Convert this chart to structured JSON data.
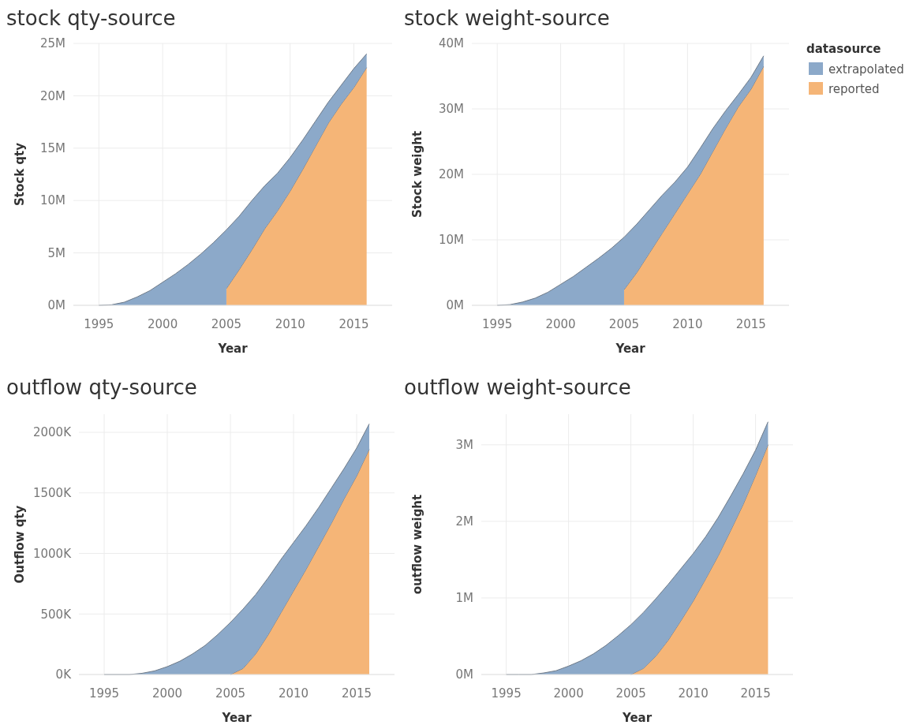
{
  "chart_data": [
    {
      "type": "area",
      "stacked": true,
      "title": "stock qty-source",
      "xlabel": "Year",
      "ylabel": "Stock qty",
      "grid": true,
      "x": [
        1995,
        1996,
        1997,
        1998,
        1999,
        2000,
        2001,
        2002,
        2003,
        2004,
        2005,
        2006,
        2007,
        2008,
        2009,
        2010,
        2011,
        2012,
        2013,
        2014,
        2015,
        2016
      ],
      "xlim": [
        1993,
        2018
      ],
      "xticks": [
        1995,
        2000,
        2005,
        2010,
        2015
      ],
      "ylim": [
        0,
        25000000
      ],
      "yticks": [
        {
          "value": 0,
          "label": "0M"
        },
        {
          "value": 5000000,
          "label": "5M"
        },
        {
          "value": 10000000,
          "label": "10M"
        },
        {
          "value": 15000000,
          "label": "15M"
        },
        {
          "value": 20000000,
          "label": "20M"
        },
        {
          "value": 25000000,
          "label": "25M"
        }
      ],
      "series": [
        {
          "color": "#f5b577",
          "values": [
            null,
            null,
            null,
            null,
            null,
            null,
            null,
            null,
            null,
            null,
            1600000,
            3400000,
            5300000,
            7300000,
            9000000,
            10900000,
            13000000,
            15200000,
            17400000,
            19200000,
            20800000,
            22700000
          ]
        },
        {
          "color": "#8ca9c9",
          "values": [
            0,
            50000,
            300000,
            800000,
            1400000,
            2200000,
            3000000,
            3900000,
            4900000,
            6000000,
            5600000,
            5100000,
            4700000,
            4100000,
            3600000,
            3200000,
            2800000,
            2400000,
            2000000,
            1800000,
            1800000,
            1300000
          ]
        }
      ]
    },
    {
      "type": "area",
      "stacked": true,
      "title": "stock weight-source",
      "xlabel": "Year",
      "ylabel": "Stock weight",
      "grid": true,
      "legend": "right",
      "legend_title": "datasource",
      "x": [
        1995,
        1996,
        1997,
        1998,
        1999,
        2000,
        2001,
        2002,
        2003,
        2004,
        2005,
        2006,
        2007,
        2008,
        2009,
        2010,
        2011,
        2012,
        2013,
        2014,
        2015,
        2016
      ],
      "xlim": [
        1993,
        2018
      ],
      "xticks": [
        1995,
        2000,
        2005,
        2010,
        2015
      ],
      "ylim": [
        0,
        40000000
      ],
      "yticks": [
        {
          "value": 0,
          "label": "0M"
        },
        {
          "value": 10000000,
          "label": "10M"
        },
        {
          "value": 20000000,
          "label": "20M"
        },
        {
          "value": 30000000,
          "label": "30M"
        },
        {
          "value": 40000000,
          "label": "40M"
        }
      ],
      "series": [
        {
          "name": "reported",
          "color": "#f5b577",
          "values": [
            null,
            null,
            null,
            null,
            null,
            null,
            null,
            null,
            null,
            null,
            2400000,
            5000000,
            8000000,
            11000000,
            14000000,
            17000000,
            20000000,
            23500000,
            27000000,
            30300000,
            33000000,
            36500000
          ]
        },
        {
          "name": "extrapolated",
          "color": "#8ca9c9",
          "values": [
            0,
            100000,
            500000,
            1100000,
            2000000,
            3200000,
            4400000,
            5800000,
            7200000,
            8700000,
            8000000,
            7400000,
            6600000,
            5800000,
            4800000,
            4100000,
            4000000,
            3500000,
            2700000,
            1900000,
            1800000,
            1600000
          ]
        }
      ]
    },
    {
      "type": "area",
      "stacked": true,
      "title": "outflow qty-source",
      "xlabel": "Year",
      "ylabel": "Outflow qty",
      "grid": true,
      "x": [
        1995,
        1996,
        1997,
        1998,
        1999,
        2000,
        2001,
        2002,
        2003,
        2004,
        2005,
        2006,
        2007,
        2008,
        2009,
        2010,
        2011,
        2012,
        2013,
        2014,
        2015,
        2016
      ],
      "xlim": [
        1993,
        2018
      ],
      "xticks": [
        1995,
        2000,
        2005,
        2010,
        2015
      ],
      "ylim": [
        0,
        2150000
      ],
      "yticks": [
        {
          "value": 0,
          "label": "0K"
        },
        {
          "value": 500000,
          "label": "500K"
        },
        {
          "value": 1000000,
          "label": "1000K"
        },
        {
          "value": 1500000,
          "label": "1500K"
        },
        {
          "value": 2000000,
          "label": "2000K"
        }
      ],
      "series": [
        {
          "color": "#f5b577",
          "values": [
            null,
            null,
            null,
            null,
            null,
            null,
            null,
            null,
            null,
            null,
            0,
            50000,
            170000,
            330000,
            510000,
            690000,
            870000,
            1060000,
            1250000,
            1450000,
            1640000,
            1860000
          ]
        },
        {
          "color": "#8ca9c9",
          "values": [
            0,
            0,
            0,
            10000,
            30000,
            65000,
            110000,
            170000,
            240000,
            330000,
            430000,
            490000,
            490000,
            470000,
            440000,
            400000,
            360000,
            320000,
            290000,
            250000,
            230000,
            210000
          ]
        }
      ]
    },
    {
      "type": "area",
      "stacked": true,
      "title": "outflow weight-source",
      "xlabel": "Year",
      "ylabel": "outflow weight",
      "grid": true,
      "x": [
        1995,
        1996,
        1997,
        1998,
        1999,
        2000,
        2001,
        2002,
        2003,
        2004,
        2005,
        2006,
        2007,
        2008,
        2009,
        2010,
        2011,
        2012,
        2013,
        2014,
        2015,
        2016
      ],
      "xlim": [
        1993,
        2018
      ],
      "xticks": [
        1995,
        2000,
        2005,
        2010,
        2015
      ],
      "ylim": [
        0,
        3400000
      ],
      "yticks": [
        {
          "value": 0,
          "label": "0M"
        },
        {
          "value": 1000000,
          "label": "1M"
        },
        {
          "value": 2000000,
          "label": "2M"
        },
        {
          "value": 3000000,
          "label": "3M"
        }
      ],
      "series": [
        {
          "color": "#f5b577",
          "values": [
            null,
            null,
            null,
            null,
            null,
            null,
            null,
            null,
            null,
            null,
            0,
            80000,
            240000,
            450000,
            700000,
            960000,
            1250000,
            1550000,
            1880000,
            2220000,
            2600000,
            3000000
          ]
        },
        {
          "color": "#8ca9c9",
          "values": [
            0,
            0,
            0,
            20000,
            50000,
            110000,
            180000,
            270000,
            380000,
            510000,
            650000,
            730000,
            750000,
            730000,
            680000,
            620000,
            550000,
            500000,
            450000,
            400000,
            330000,
            300000
          ]
        }
      ]
    }
  ]
}
